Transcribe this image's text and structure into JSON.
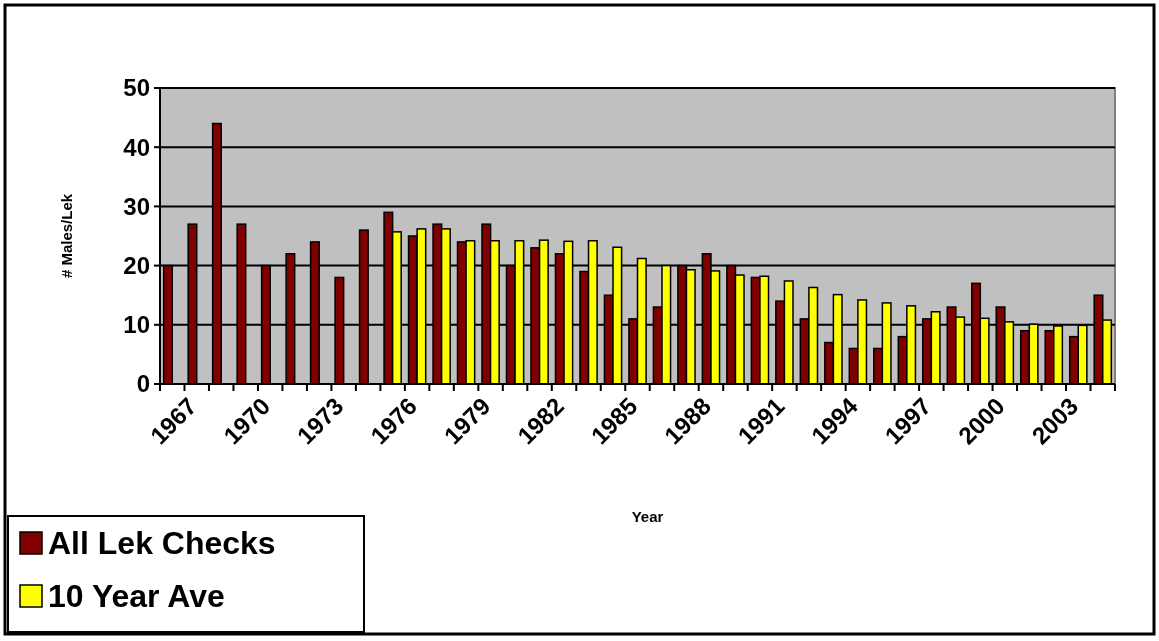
{
  "chart_data": {
    "type": "bar",
    "xlabel": "Year",
    "ylabel": "# Males/Lek",
    "categories": [
      "1967",
      null,
      null,
      "1970",
      null,
      null,
      "1973",
      null,
      null,
      "1976",
      null,
      null,
      "1979",
      null,
      null,
      "1982",
      null,
      null,
      "1985",
      null,
      null,
      "1988",
      null,
      null,
      "1991",
      null,
      null,
      "1994",
      null,
      null,
      "1997",
      null,
      null,
      "2000",
      null,
      null,
      "2003",
      null,
      null
    ],
    "series": [
      {
        "name": "All Lek Checks",
        "color": "#800000",
        "values": [
          20,
          27,
          44,
          27,
          20,
          22,
          24,
          18,
          26,
          29,
          25,
          27,
          24,
          27,
          20,
          23,
          22,
          19,
          15,
          11,
          13,
          20,
          22,
          20,
          18,
          14,
          11,
          7,
          6,
          6,
          8,
          11,
          13,
          17,
          13,
          9,
          9,
          8,
          15
        ]
      },
      {
        "name": "10 Year Ave",
        "color": "#ffff00",
        "values": [
          null,
          null,
          null,
          null,
          null,
          null,
          null,
          null,
          null,
          25.7,
          26.2,
          26.2,
          24.2,
          24.2,
          24.2,
          24.3,
          24.1,
          24.2,
          23.1,
          21.2,
          20,
          19.3,
          19.1,
          18.4,
          18.2,
          17.4,
          16.3,
          15.1,
          14.2,
          13.7,
          13.2,
          12.2,
          11.3,
          11.1,
          10.5,
          10.1,
          9.8,
          9.9,
          10.8
        ]
      }
    ],
    "ylim": [
      0,
      50
    ],
    "yticks": [
      0,
      10,
      20,
      30,
      40,
      50
    ],
    "grid": "y",
    "legend": "bottom left"
  }
}
